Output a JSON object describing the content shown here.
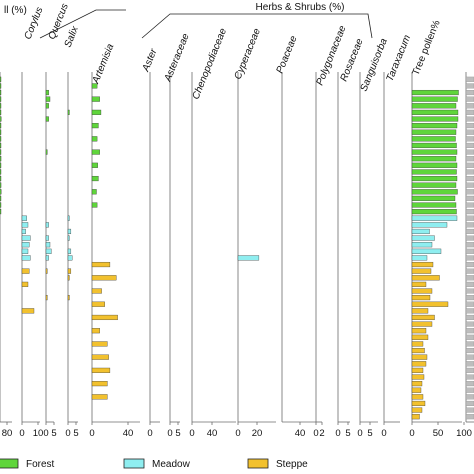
{
  "chart_data": {
    "type": "bar",
    "orientation": "horizontal",
    "group_titles": {
      "trees_partial": "ll (%)",
      "herbs": "Herbs & Shrubs (%)"
    },
    "columns": [
      {
        "name": "",
        "ticks": [
          "80"
        ],
        "xmax": 80,
        "values": [
          5,
          4,
          3,
          5,
          4,
          6,
          8,
          6,
          5,
          4,
          6,
          5,
          7,
          4,
          5,
          6,
          7,
          8,
          6,
          5,
          4,
          0,
          0,
          0,
          0,
          0,
          0,
          0,
          0,
          0,
          0,
          0,
          0,
          0,
          0,
          0,
          0,
          0,
          0,
          0,
          0,
          0,
          0,
          0,
          0,
          0,
          0,
          0,
          0,
          0,
          0,
          0
        ]
      },
      {
        "name": "Corylus",
        "ticks": [
          "0",
          "10"
        ],
        "xmax": 15,
        "values": [
          0,
          0,
          0,
          0,
          0,
          0,
          0,
          0,
          0,
          0,
          0,
          0,
          0,
          0,
          0,
          0,
          0,
          0,
          0,
          0,
          0,
          4,
          5,
          3,
          7,
          6,
          5,
          7,
          0,
          6,
          0,
          5,
          0,
          0,
          0,
          10,
          0,
          0,
          0,
          0,
          0,
          0,
          0,
          0,
          0,
          0,
          0,
          0,
          0,
          0,
          0,
          0
        ]
      },
      {
        "name": "Quercus",
        "ticks": [
          "0",
          "5"
        ],
        "xmax": 6,
        "values": [
          0,
          0,
          2,
          3,
          2,
          0,
          2,
          0,
          0,
          0,
          0,
          1,
          0,
          0,
          0,
          0,
          0,
          0,
          0,
          0,
          0,
          0,
          2,
          0,
          2,
          3,
          4,
          2,
          0,
          1,
          0,
          0,
          0,
          1,
          0,
          0,
          0,
          0,
          0,
          0,
          0,
          0,
          0,
          0,
          0,
          0,
          0,
          0,
          0,
          0,
          0,
          0
        ]
      },
      {
        "name": "Salix",
        "ticks": [
          "0",
          "5"
        ],
        "xmax": 7,
        "values": [
          0,
          0,
          0,
          0,
          0,
          1,
          0,
          0,
          0,
          0,
          0,
          0,
          0,
          0,
          0,
          0,
          0,
          0,
          0,
          0,
          0,
          1,
          0,
          2,
          1,
          0,
          2,
          3,
          0,
          2,
          1,
          0,
          0,
          1,
          0,
          0,
          0,
          0,
          0,
          0,
          0,
          0,
          0,
          0,
          0,
          0,
          0,
          0,
          0,
          0,
          0,
          0
        ]
      },
      {
        "name": "Artemisia",
        "ticks": [
          "0",
          "40"
        ],
        "xmax": 75,
        "values": [
          0,
          8,
          0,
          12,
          0,
          14,
          0,
          10,
          0,
          8,
          0,
          12,
          0,
          9,
          0,
          10,
          0,
          7,
          0,
          8,
          0,
          0,
          0,
          0,
          0,
          0,
          0,
          0,
          28,
          0,
          38,
          0,
          15,
          0,
          20,
          0,
          40,
          0,
          12,
          0,
          24,
          0,
          26,
          0,
          28,
          0,
          24,
          0,
          24,
          0,
          0,
          0
        ]
      },
      {
        "name": "Aster",
        "ticks": [
          "0"
        ],
        "xmax": 12,
        "values": [
          0,
          0,
          0,
          0,
          0,
          0,
          0,
          0,
          0,
          0,
          0,
          0,
          0,
          0,
          0,
          0,
          0,
          0,
          0,
          0,
          0,
          0,
          0,
          0,
          0,
          0,
          0,
          0,
          0,
          0,
          0,
          0,
          0,
          0,
          0,
          0,
          0,
          0,
          0,
          0,
          0,
          0,
          0,
          0,
          0,
          0,
          0,
          0,
          0,
          0,
          0,
          0
        ]
      },
      {
        "name": "Asteraceae",
        "ticks": [
          "0",
          "5"
        ],
        "xmax": 8,
        "values": [
          0,
          0,
          0,
          0,
          0,
          0,
          0,
          0,
          0,
          0,
          0,
          0,
          0,
          0,
          0,
          0,
          0,
          0,
          0,
          0,
          0,
          0,
          0,
          0,
          0,
          0,
          0,
          0,
          0,
          0,
          0,
          0,
          0,
          0,
          0,
          0,
          0,
          0,
          0,
          0,
          0,
          0,
          0,
          0,
          0,
          0,
          0,
          0,
          0,
          0,
          0,
          0
        ]
      },
      {
        "name": "Chenopodiaceae",
        "ticks": [
          "0",
          "40"
        ],
        "xmax": 75,
        "values": [
          0,
          0,
          0,
          0,
          0,
          0,
          0,
          0,
          0,
          0,
          0,
          0,
          0,
          0,
          0,
          0,
          0,
          0,
          0,
          0,
          0,
          0,
          0,
          0,
          0,
          0,
          0,
          0,
          0,
          0,
          0,
          0,
          0,
          0,
          0,
          0,
          0,
          0,
          0,
          0,
          0,
          0,
          0,
          0,
          0,
          0,
          0,
          0,
          0,
          0,
          0,
          0
        ]
      },
      {
        "name": "Cyperaceae",
        "ticks": [
          "0",
          "20"
        ],
        "xmax": 40,
        "values": [
          0,
          0,
          0,
          0,
          0,
          0,
          0,
          0,
          0,
          0,
          0,
          0,
          0,
          0,
          0,
          0,
          0,
          0,
          0,
          0,
          0,
          0,
          0,
          0,
          0,
          0,
          0,
          22,
          0,
          0,
          0,
          0,
          0,
          0,
          0,
          0,
          0,
          0,
          0,
          0,
          0,
          0,
          0,
          0,
          0,
          0,
          0,
          0,
          0,
          0,
          0,
          0
        ]
      },
      {
        "name": "Poaceae",
        "ticks": [
          "40"
        ],
        "xmax": 70,
        "values": [
          0,
          0,
          0,
          0,
          0,
          0,
          0,
          0,
          0,
          0,
          0,
          0,
          0,
          0,
          0,
          0,
          0,
          0,
          0,
          0,
          0,
          0,
          0,
          0,
          0,
          0,
          0,
          0,
          0,
          0,
          0,
          0,
          0,
          0,
          0,
          0,
          0,
          0,
          0,
          0,
          0,
          0,
          0,
          0,
          0,
          0,
          0,
          0,
          0,
          0,
          0,
          0
        ]
      },
      {
        "name": "Polygonaceae",
        "ticks": [
          "0",
          "2"
        ],
        "xmax": 3,
        "values": [
          0,
          0,
          0,
          0,
          0,
          0,
          0,
          0,
          0,
          0,
          0,
          0,
          0,
          0,
          0,
          0,
          0,
          0,
          0,
          0,
          0,
          0,
          0,
          0,
          0,
          0,
          0,
          0,
          0,
          0,
          0,
          0,
          0,
          0,
          0,
          0,
          0,
          0,
          0,
          0,
          0,
          0,
          0,
          0,
          0,
          0,
          0,
          0,
          0,
          0,
          0,
          0
        ]
      },
      {
        "name": "Rosaceae",
        "ticks": [
          "0",
          "5"
        ],
        "xmax": 8,
        "values": [
          0,
          0,
          0,
          0,
          0,
          0,
          0,
          0,
          0,
          0,
          0,
          0,
          0,
          0,
          0,
          0,
          0,
          0,
          0,
          0,
          0,
          0,
          0,
          0,
          0,
          0,
          0,
          0,
          0,
          0,
          0,
          0,
          0,
          0,
          0,
          0,
          0,
          0,
          0,
          0,
          0,
          0,
          0,
          0,
          0,
          0,
          0,
          0,
          0,
          0,
          0,
          0
        ]
      },
      {
        "name": "Sanguisorba",
        "ticks": [
          "0",
          "5"
        ],
        "xmax": 8,
        "values": [
          0,
          0,
          0,
          0,
          0,
          0,
          0,
          0,
          0,
          0,
          0,
          0,
          0,
          0,
          0,
          0,
          0,
          0,
          0,
          0,
          0,
          0,
          0,
          0,
          0,
          0,
          0,
          0,
          0,
          0,
          0,
          0,
          0,
          0,
          0,
          0,
          0,
          0,
          0,
          0,
          0,
          0,
          0,
          0,
          0,
          0,
          0,
          0,
          0,
          0,
          0,
          0
        ]
      },
      {
        "name": "Taraxacum",
        "ticks": [
          "0"
        ],
        "xmax": 10,
        "values": [
          0,
          0,
          0,
          0,
          0,
          0,
          0,
          0,
          0,
          0,
          0,
          0,
          0,
          0,
          0,
          0,
          0,
          0,
          0,
          0,
          0,
          0,
          0,
          0,
          0,
          0,
          0,
          0,
          0,
          0,
          0,
          0,
          0,
          0,
          0,
          0,
          0,
          0,
          0,
          0,
          0,
          0,
          0,
          0,
          0,
          0,
          0,
          0,
          0,
          0,
          0,
          0
        ]
      },
      {
        "name": "Tree pollen%",
        "ticks": [
          "0",
          "50",
          "100"
        ],
        "xmax": 100,
        "plain": true,
        "values": [
          0,
          0,
          93,
          91,
          88,
          92,
          92,
          90,
          88,
          87,
          89,
          90,
          88,
          90,
          89,
          90,
          88,
          91,
          86,
          88,
          89,
          90,
          70,
          35,
          45,
          40,
          58,
          30,
          42,
          38,
          55,
          28,
          40,
          36,
          72,
          32,
          45,
          40,
          28,
          32,
          22,
          25,
          30,
          28,
          22,
          24,
          20,
          18,
          22,
          26,
          20,
          15
        ]
      },
      {
        "name": "",
        "ticks": [],
        "xmax": 10,
        "values": []
      }
    ],
    "zones": {
      "Forest": [
        0,
        20
      ],
      "Meadow": [
        21,
        27
      ],
      "Steppe": [
        28,
        51
      ]
    },
    "legend": [
      {
        "label": "Forest",
        "color": "#5fd53b"
      },
      {
        "label": "Meadow",
        "color": "#8feef0"
      },
      {
        "label": "Steppe",
        "color": "#f2c12e"
      }
    ],
    "legend_position": "bottom"
  }
}
